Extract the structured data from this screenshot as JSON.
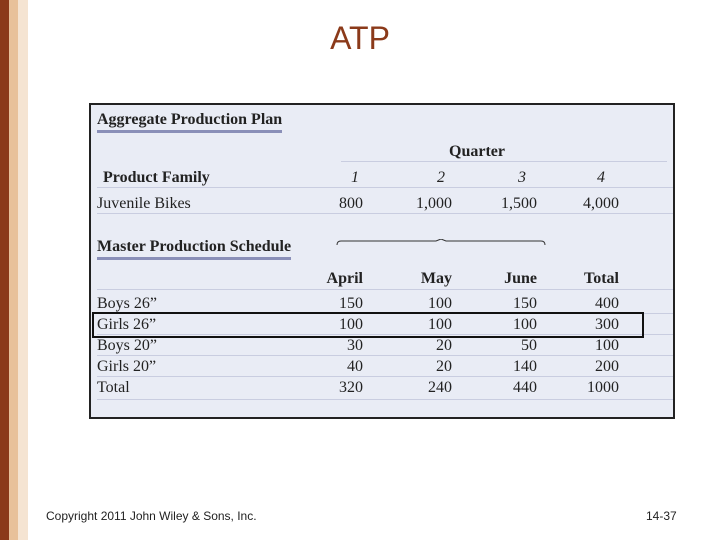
{
  "slide": {
    "title": "ATP"
  },
  "app": {
    "heading": "Aggregate Production Plan",
    "quarter_label": "Quarter",
    "product_family_label": "Product Family",
    "quarters": [
      "1",
      "2",
      "3",
      "4"
    ],
    "family_row": {
      "name": "Juvenile Bikes",
      "values": [
        "800",
        "1,000",
        "1,500",
        "4,000"
      ]
    },
    "mps_heading": "Master Production Schedule",
    "mps_columns": [
      "April",
      "May",
      "June",
      "Total"
    ],
    "mps_rows": [
      {
        "name": "Boys 26”",
        "values": [
          "150",
          "100",
          "150",
          "400"
        ]
      },
      {
        "name": "Girls 26”",
        "values": [
          "100",
          "100",
          "100",
          "300"
        ]
      },
      {
        "name": "Boys 20”",
        "values": [
          "30",
          "20",
          "50",
          "100"
        ]
      },
      {
        "name": "Girls 20”",
        "values": [
          "40",
          "20",
          "140",
          "200"
        ]
      },
      {
        "name": "Total",
        "values": [
          "320",
          "240",
          "440",
          "1000"
        ]
      }
    ],
    "highlighted_row": "Girls 26”"
  },
  "footer": {
    "copyright": "Copyright 2011 John Wiley & Sons, Inc.",
    "page": "14-37"
  },
  "colors": {
    "accent": "#8b3a1a",
    "panel": "#e9ecf5",
    "highlight_border": "#111111"
  }
}
